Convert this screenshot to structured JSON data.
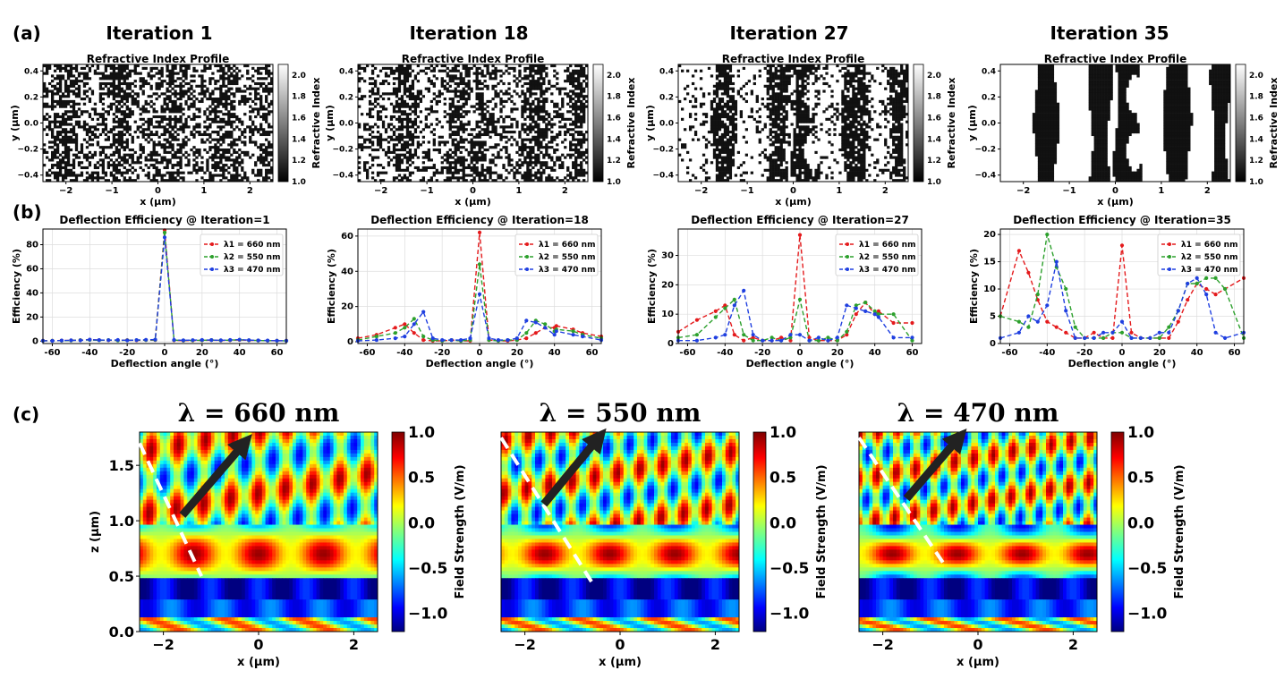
{
  "panel_labels": [
    "(a)",
    "(b)",
    "(c)"
  ],
  "row_a": {
    "iteration_titles": [
      "Iteration 1",
      "Iteration 18",
      "Iteration 27",
      "Iteration 35"
    ],
    "plot_title": "Refractive Index Profile",
    "xlabel": "x (μm)",
    "ylabel": "y (μm)",
    "colorbar_label": "Refractive Index",
    "x_ticks": [
      "−2",
      "−1",
      "0",
      "1",
      "2"
    ],
    "y_ticks": [
      "0.4",
      "0.2",
      "0.0",
      "−0.2",
      "−0.4"
    ],
    "cb_ticks": [
      "2.0",
      "1.8",
      "1.6",
      "1.4",
      "1.2",
      "1.0"
    ],
    "xlim": [
      -2.5,
      2.5
    ],
    "ylim": [
      -0.45,
      0.45
    ],
    "clim": [
      1.0,
      2.1
    ],
    "colormap": "gray",
    "noise_level": [
      0.5,
      0.32,
      0.16,
      0.0
    ]
  },
  "row_c": {
    "wavelength_titles": [
      "λ = 660 nm",
      "λ = 550 nm",
      "λ = 470 nm"
    ],
    "xlabel": "x (μm)",
    "ylabel": "z (μm)",
    "colorbar_label": "Field Strength (V/m)",
    "x_ticks": [
      "−2",
      "0",
      "2"
    ],
    "y_ticks": [
      "1.5",
      "1.0",
      "0.5",
      "0.0"
    ],
    "cb_ticks": [
      "1.0",
      "0.5",
      "0.0",
      "−0.5",
      "−1.0"
    ],
    "xlim": [
      -2.5,
      2.5
    ],
    "ylim": [
      0,
      1.8
    ],
    "clim": [
      -1.2,
      1.0
    ],
    "colormap": "jet"
  },
  "chart_data": [
    {
      "type": "line",
      "title": "Deflection Efficiency @ Iteration=1",
      "xlabel": "Deflection angle (°)",
      "ylabel": "Efficiency (%)",
      "xlim": [
        -65,
        65
      ],
      "ylim": [
        -2,
        93
      ],
      "x_ticks": [
        -60,
        -40,
        -20,
        0,
        20,
        40,
        60
      ],
      "y_ticks": [
        0,
        20,
        40,
        60,
        80
      ],
      "grid": true,
      "legend": "top-right",
      "x": [
        -65,
        -60,
        -55,
        -50,
        -45,
        -40,
        -35,
        -30,
        -25,
        -20,
        -15,
        -10,
        -5,
        0,
        5,
        10,
        15,
        20,
        25,
        30,
        35,
        40,
        45,
        50,
        55,
        60,
        65
      ],
      "series": [
        {
          "name": "λ1 = 660 nm",
          "color": "#e41a1c",
          "values": [
            0.3,
            0.4,
            0.5,
            0.6,
            0.8,
            1.2,
            0.8,
            0.7,
            0.6,
            0.8,
            0.6,
            0.8,
            0.8,
            92,
            0.6,
            0.4,
            0.5,
            0.6,
            0.8,
            0.5,
            0.7,
            1.0,
            0.6,
            0.5,
            0.4,
            0.3,
            0.3
          ]
        },
        {
          "name": "λ2 = 550 nm",
          "color": "#2ca02c",
          "values": [
            0.2,
            0.3,
            0.4,
            0.5,
            0.8,
            1.0,
            0.7,
            0.9,
            0.5,
            0.7,
            0.8,
            0.9,
            1.0,
            90,
            0.8,
            0.5,
            0.6,
            0.7,
            0.9,
            0.6,
            0.8,
            1.1,
            0.7,
            0.5,
            0.4,
            0.3,
            0.2
          ]
        },
        {
          "name": "λ3 = 470 nm",
          "color": "#1f3fe0",
          "values": [
            0.3,
            0.2,
            0.5,
            0.7,
            0.6,
            1.3,
            0.9,
            0.8,
            1.0,
            0.6,
            0.9,
            1.1,
            1.3,
            86,
            1.0,
            0.7,
            0.8,
            1.0,
            0.9,
            0.7,
            1.0,
            1.2,
            0.8,
            0.6,
            0.5,
            0.4,
            0.3
          ]
        }
      ]
    },
    {
      "type": "line",
      "title": "Deflection Efficiency @ Iteration=18",
      "xlabel": "Deflection angle (°)",
      "ylabel": "Efficiency (%)",
      "xlim": [
        -65,
        65
      ],
      "ylim": [
        -1,
        64
      ],
      "x_ticks": [
        -60,
        -40,
        -20,
        0,
        20,
        40,
        60
      ],
      "y_ticks": [
        0,
        20,
        40,
        60
      ],
      "grid": true,
      "legend": "top-right",
      "x": [
        -65,
        -55,
        -45,
        -40,
        -35,
        -30,
        -25,
        -20,
        -15,
        -10,
        -5,
        0,
        5,
        10,
        15,
        20,
        25,
        30,
        35,
        40,
        41,
        50,
        55,
        65
      ],
      "series": [
        {
          "name": "λ1 = 660 nm",
          "color": "#e41a1c",
          "values": [
            2,
            4,
            8,
            10,
            5,
            1,
            0.5,
            0.5,
            1,
            0.5,
            0.5,
            62,
            1,
            0.5,
            0.5,
            1,
            2,
            5,
            8,
            8,
            9,
            7,
            5,
            3
          ]
        },
        {
          "name": "λ2 = 550 nm",
          "color": "#2ca02c",
          "values": [
            1,
            3,
            5,
            8,
            13,
            3,
            1,
            0.5,
            1,
            0.5,
            1,
            44,
            1,
            0.5,
            1,
            1,
            5,
            12,
            10,
            6,
            7,
            6,
            4,
            2
          ]
        },
        {
          "name": "λ3 = 470 nm",
          "color": "#1f3fe0",
          "values": [
            0.5,
            1,
            2,
            3,
            10,
            17,
            2,
            1,
            1,
            1,
            2,
            27,
            2,
            1,
            1,
            2,
            12,
            11,
            8,
            4,
            6,
            4,
            3,
            1
          ]
        }
      ]
    },
    {
      "type": "line",
      "title": "Deflection Efficiency @ Iteration=27",
      "xlabel": "Deflection angle (°)",
      "ylabel": "Efficiency (%)",
      "xlim": [
        -65,
        65
      ],
      "ylim": [
        0,
        39
      ],
      "x_ticks": [
        -60,
        -40,
        -20,
        0,
        20,
        40,
        60
      ],
      "y_ticks": [
        0,
        10,
        20,
        30
      ],
      "grid": true,
      "legend": "top-right",
      "x": [
        -65,
        -55,
        -45,
        -40,
        -35,
        -30,
        -25,
        -20,
        -15,
        -10,
        -5,
        0,
        5,
        10,
        15,
        20,
        25,
        30,
        35,
        40,
        42,
        50,
        60
      ],
      "series": [
        {
          "name": "λ1 = 660 nm",
          "color": "#e41a1c",
          "values": [
            4,
            8,
            11,
            13,
            3,
            1,
            2,
            1,
            1,
            2,
            1,
            37,
            2,
            1,
            1,
            1,
            3,
            10,
            14,
            10,
            11,
            7,
            7
          ]
        },
        {
          "name": "λ2 = 550 nm",
          "color": "#2ca02c",
          "values": [
            2,
            3,
            9,
            12,
            15,
            3,
            1,
            1,
            2,
            1,
            2,
            15,
            1,
            1,
            2,
            1,
            4,
            13,
            14,
            11,
            10,
            10,
            1
          ]
        },
        {
          "name": "λ3 = 470 nm",
          "color": "#1f3fe0",
          "values": [
            1,
            1,
            2,
            3,
            13,
            18,
            3,
            1,
            1,
            1,
            3,
            3,
            1,
            2,
            1,
            2,
            13,
            12,
            11,
            10,
            9,
            2,
            2
          ]
        }
      ]
    },
    {
      "type": "line",
      "title": "Deflection Efficiency @ Iteration=35",
      "xlabel": "Deflection angle (°)",
      "ylabel": "Efficiency (%)",
      "xlim": [
        -65,
        65
      ],
      "ylim": [
        0,
        21
      ],
      "x_ticks": [
        -60,
        -40,
        -20,
        0,
        20,
        40,
        60
      ],
      "y_ticks": [
        0,
        5,
        10,
        15,
        20
      ],
      "grid": true,
      "legend": "top-right",
      "x": [
        -65,
        -55,
        -50,
        -45,
        -40,
        -35,
        -30,
        -25,
        -20,
        -15,
        -10,
        -5,
        0,
        5,
        10,
        15,
        20,
        25,
        30,
        35,
        40,
        45,
        50,
        55,
        65
      ],
      "series": [
        {
          "name": "λ1 = 660 nm",
          "color": "#e41a1c",
          "values": [
            5,
            17,
            13,
            8,
            4,
            3,
            2,
            1,
            1,
            2,
            1,
            1,
            18,
            2,
            1,
            1,
            1,
            1,
            4,
            8,
            11,
            10,
            9,
            10,
            12
          ]
        },
        {
          "name": "λ2 = 550 nm",
          "color": "#2ca02c",
          "values": [
            5,
            4,
            3,
            9,
            20,
            14,
            10,
            3,
            1,
            1,
            1,
            2,
            2,
            1,
            1,
            1,
            1,
            3,
            6,
            11,
            11,
            12,
            12,
            10,
            1
          ]
        },
        {
          "name": "λ3 = 470 nm",
          "color": "#1f3fe0",
          "values": [
            1,
            2,
            5,
            4,
            7,
            15,
            6,
            1,
            1,
            1,
            2,
            2,
            4,
            1,
            1,
            1,
            2,
            2,
            6,
            11,
            12,
            9,
            2,
            1,
            2
          ]
        }
      ]
    }
  ]
}
